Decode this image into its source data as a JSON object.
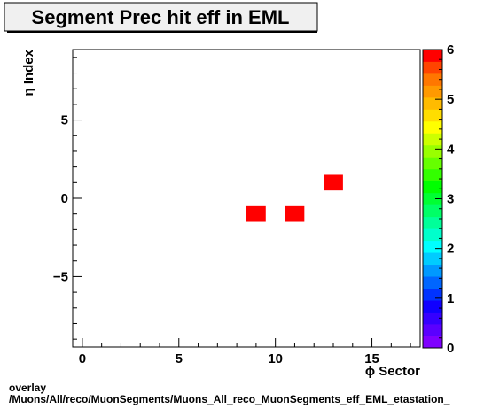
{
  "chart_data": {
    "type": "heatmap",
    "title": "Segment Prec hit eff in EML",
    "xlabel": "ϕ Sector",
    "ylabel": "η Index",
    "xlim": [
      -0.5,
      17.5
    ],
    "ylim": [
      -9.5,
      9.5
    ],
    "x_ticks": [
      0,
      5,
      10,
      15
    ],
    "y_ticks": [
      -5,
      0,
      5
    ],
    "zlim": [
      0,
      6
    ],
    "z_ticks": [
      0,
      1,
      2,
      3,
      4,
      5,
      6
    ],
    "cells": [
      {
        "x": 9,
        "y": -1,
        "z": 6
      },
      {
        "x": 11,
        "y": -1,
        "z": 6
      },
      {
        "x": 13,
        "y": 1,
        "z": 6
      }
    ],
    "palette": [
      "#7f00ff",
      "#5a00ff",
      "#3500ff",
      "#1000ff",
      "#0033ff",
      "#0066ff",
      "#0099ff",
      "#00ccff",
      "#00ffff",
      "#00ffcc",
      "#00ff99",
      "#00ff66",
      "#00ff33",
      "#00ff00",
      "#33ff00",
      "#66ff00",
      "#99ff00",
      "#ccff00",
      "#ffff00",
      "#ffdd00",
      "#ffbb00",
      "#ff9900",
      "#ff7700",
      "#ff4400",
      "#ff0000"
    ]
  },
  "footer": {
    "line1": "overlay",
    "line2": "/Muons/All/reco/MuonSegments/Muons_All_reco_MuonSegments_eff_EML_etastation_"
  }
}
